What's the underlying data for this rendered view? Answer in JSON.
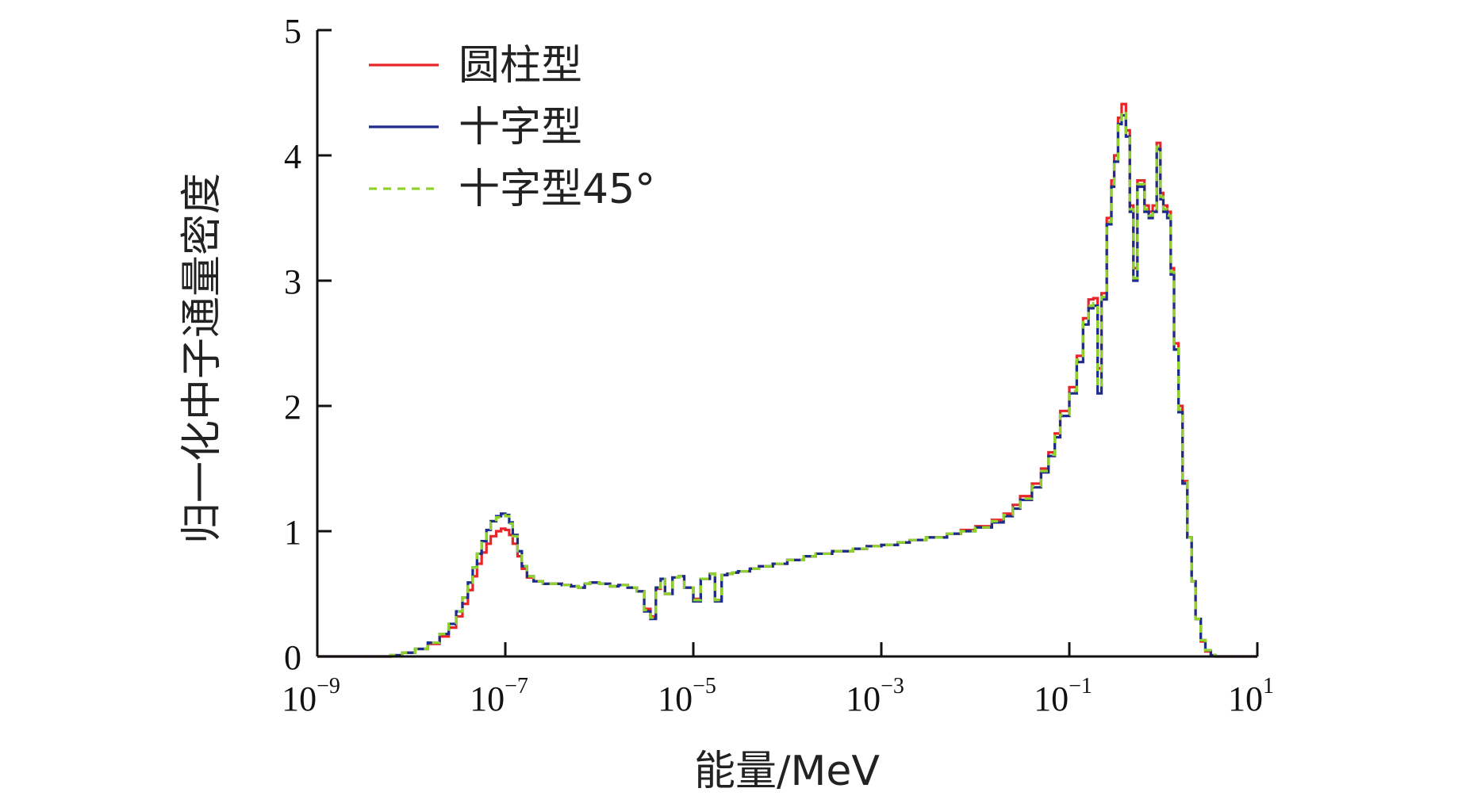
{
  "chart_data": {
    "type": "line",
    "title": "",
    "xlabel": "能量/MeV",
    "ylabel": "归一化中子通量密度",
    "x_scale": "log",
    "xlim": [
      1e-09,
      10
    ],
    "ylim": [
      0,
      5
    ],
    "x_ticks": [
      {
        "base": "10",
        "exp": "−9",
        "value": 1e-09
      },
      {
        "base": "10",
        "exp": "−7",
        "value": 1e-07
      },
      {
        "base": "10",
        "exp": "−5",
        "value": 1e-05
      },
      {
        "base": "10",
        "exp": "−3",
        "value": 0.001
      },
      {
        "base": "10",
        "exp": "−1",
        "value": 0.1
      },
      {
        "base": "10",
        "exp": "1",
        "value": 10
      }
    ],
    "y_ticks": [
      "0",
      "1",
      "2",
      "3",
      "4",
      "5"
    ],
    "grid": false,
    "legend_position": "top-left",
    "series": [
      {
        "name": "圆柱型",
        "color": "#e8262a",
        "dash": "solid",
        "x": [
          1e-09,
          2e-09,
          3e-09,
          4.5e-09,
          6e-09,
          8e-09,
          1.1e-08,
          1.5e-08,
          2e-08,
          2.5e-08,
          3e-08,
          3.5e-08,
          4e-08,
          4.5e-08,
          5e-08,
          5.6e-08,
          6.3e-08,
          7e-08,
          8e-08,
          9e-08,
          1e-07,
          1.1e-07,
          1.2e-07,
          1.35e-07,
          1.5e-07,
          1.7e-07,
          2e-07,
          2.5e-07,
          3e-07,
          4e-07,
          5e-07,
          6e-07,
          7e-07,
          8e-07,
          1e-06,
          1.3e-06,
          1.6e-06,
          2e-06,
          2.5e-06,
          3e-06,
          3.5e-06,
          4e-06,
          4.5e-06,
          5e-06,
          6e-06,
          7e-06,
          8e-06,
          1e-05,
          1.2e-05,
          1.5e-05,
          1.7e-05,
          2e-05,
          2.3e-05,
          2.6e-05,
          3e-05,
          4e-05,
          5e-05,
          7e-05,
          0.0001,
          0.00015,
          0.0002,
          0.0003,
          0.0005,
          0.0007,
          0.001,
          0.0015,
          0.002,
          0.003,
          0.005,
          0.007,
          0.01,
          0.015,
          0.02,
          0.025,
          0.03,
          0.04,
          0.05,
          0.06,
          0.07,
          0.08,
          0.1,
          0.12,
          0.14,
          0.16,
          0.18,
          0.2,
          0.22,
          0.25,
          0.28,
          0.3,
          0.33,
          0.36,
          0.4,
          0.44,
          0.48,
          0.53,
          0.58,
          0.63,
          0.7,
          0.77,
          0.85,
          0.93,
          1.0,
          1.1,
          1.2,
          1.3,
          1.45,
          1.6,
          1.8,
          2.0,
          2.2,
          2.5,
          2.8,
          3.2,
          3.6,
          4.0,
          4.5,
          5.0,
          5.6,
          6.3,
          7.1,
          8.0,
          10
        ],
        "y": [
          0.0,
          0.0,
          0.0,
          0.0,
          0.01,
          0.03,
          0.06,
          0.1,
          0.16,
          0.23,
          0.32,
          0.42,
          0.53,
          0.64,
          0.74,
          0.83,
          0.9,
          0.96,
          1.0,
          1.02,
          1.01,
          0.97,
          0.9,
          0.8,
          0.7,
          0.63,
          0.6,
          0.58,
          0.58,
          0.57,
          0.56,
          0.55,
          0.58,
          0.59,
          0.58,
          0.56,
          0.57,
          0.55,
          0.52,
          0.38,
          0.32,
          0.54,
          0.62,
          0.5,
          0.63,
          0.64,
          0.55,
          0.46,
          0.62,
          0.66,
          0.45,
          0.65,
          0.66,
          0.67,
          0.68,
          0.7,
          0.72,
          0.74,
          0.77,
          0.8,
          0.82,
          0.84,
          0.86,
          0.88,
          0.89,
          0.91,
          0.93,
          0.95,
          0.98,
          1.01,
          1.04,
          1.09,
          1.14,
          1.21,
          1.28,
          1.38,
          1.5,
          1.63,
          1.78,
          1.96,
          2.15,
          2.4,
          2.7,
          2.85,
          2.86,
          2.3,
          2.9,
          3.5,
          3.8,
          4.0,
          4.3,
          4.41,
          4.2,
          3.6,
          3.1,
          3.8,
          3.8,
          3.6,
          3.55,
          3.6,
          4.1,
          3.7,
          3.6,
          3.55,
          3.1,
          2.5,
          2.0,
          1.4,
          0.95,
          0.6,
          0.3,
          0.12,
          0.04,
          0.01,
          0.0,
          0.0,
          0.0,
          0.0,
          0.0,
          0.0,
          0.0,
          0.0,
          0.0
        ]
      },
      {
        "name": "十字型",
        "color": "#1c2b8c",
        "dash": "solid",
        "x": [
          1e-09,
          2e-09,
          3e-09,
          4.5e-09,
          6e-09,
          8e-09,
          1.1e-08,
          1.5e-08,
          2e-08,
          2.5e-08,
          3e-08,
          3.5e-08,
          4e-08,
          4.5e-08,
          5e-08,
          5.6e-08,
          6.3e-08,
          7e-08,
          8e-08,
          9e-08,
          1e-07,
          1.1e-07,
          1.2e-07,
          1.35e-07,
          1.5e-07,
          1.7e-07,
          2e-07,
          2.5e-07,
          3e-07,
          4e-07,
          5e-07,
          6e-07,
          7e-07,
          8e-07,
          1e-06,
          1.3e-06,
          1.6e-06,
          2e-06,
          2.5e-06,
          3e-06,
          3.5e-06,
          4e-06,
          4.5e-06,
          5e-06,
          6e-06,
          7e-06,
          8e-06,
          1e-05,
          1.2e-05,
          1.5e-05,
          1.7e-05,
          2e-05,
          2.3e-05,
          2.6e-05,
          3e-05,
          4e-05,
          5e-05,
          7e-05,
          0.0001,
          0.00015,
          0.0002,
          0.0003,
          0.0005,
          0.0007,
          0.001,
          0.0015,
          0.002,
          0.003,
          0.005,
          0.007,
          0.01,
          0.015,
          0.02,
          0.025,
          0.03,
          0.04,
          0.05,
          0.06,
          0.07,
          0.08,
          0.1,
          0.12,
          0.14,
          0.16,
          0.18,
          0.2,
          0.22,
          0.25,
          0.28,
          0.3,
          0.33,
          0.36,
          0.4,
          0.44,
          0.48,
          0.53,
          0.58,
          0.63,
          0.7,
          0.77,
          0.85,
          0.93,
          1.0,
          1.1,
          1.2,
          1.3,
          1.45,
          1.6,
          1.8,
          2.0,
          2.2,
          2.5,
          2.8,
          3.2,
          3.6,
          4.0,
          4.5,
          5.0,
          5.6,
          6.3,
          7.1,
          8.0,
          10
        ],
        "y": [
          0.0,
          0.0,
          0.0,
          0.0,
          0.01,
          0.03,
          0.06,
          0.11,
          0.18,
          0.26,
          0.36,
          0.47,
          0.59,
          0.71,
          0.82,
          0.92,
          1.01,
          1.08,
          1.12,
          1.14,
          1.13,
          1.07,
          0.97,
          0.84,
          0.72,
          0.64,
          0.6,
          0.58,
          0.58,
          0.57,
          0.56,
          0.55,
          0.58,
          0.59,
          0.58,
          0.56,
          0.57,
          0.55,
          0.52,
          0.36,
          0.3,
          0.55,
          0.62,
          0.5,
          0.63,
          0.64,
          0.55,
          0.44,
          0.62,
          0.66,
          0.44,
          0.65,
          0.66,
          0.67,
          0.68,
          0.7,
          0.72,
          0.74,
          0.77,
          0.8,
          0.82,
          0.84,
          0.86,
          0.88,
          0.89,
          0.91,
          0.93,
          0.95,
          0.98,
          1.0,
          1.03,
          1.07,
          1.12,
          1.18,
          1.25,
          1.35,
          1.47,
          1.6,
          1.75,
          1.92,
          2.1,
          2.35,
          2.65,
          2.78,
          2.8,
          2.1,
          2.85,
          3.45,
          3.75,
          3.95,
          4.25,
          4.32,
          4.15,
          3.55,
          3.0,
          3.75,
          3.75,
          3.55,
          3.5,
          3.55,
          4.05,
          3.65,
          3.55,
          3.5,
          3.05,
          2.45,
          1.95,
          1.38,
          0.95,
          0.6,
          0.3,
          0.13,
          0.05,
          0.01,
          0.0,
          0.0,
          0.0,
          0.0,
          0.0,
          0.0,
          0.0,
          0.0,
          0.0
        ]
      },
      {
        "name": "十字型45°",
        "color": "#8fd22c",
        "dash": "dashed",
        "x": [
          1e-09,
          2e-09,
          3e-09,
          4.5e-09,
          6e-09,
          8e-09,
          1.1e-08,
          1.5e-08,
          2e-08,
          2.5e-08,
          3e-08,
          3.5e-08,
          4e-08,
          4.5e-08,
          5e-08,
          5.6e-08,
          6.3e-08,
          7e-08,
          8e-08,
          9e-08,
          1e-07,
          1.1e-07,
          1.2e-07,
          1.35e-07,
          1.5e-07,
          1.7e-07,
          2e-07,
          2.5e-07,
          3e-07,
          4e-07,
          5e-07,
          6e-07,
          7e-07,
          8e-07,
          1e-06,
          1.3e-06,
          1.6e-06,
          2e-06,
          2.5e-06,
          3e-06,
          3.5e-06,
          4e-06,
          4.5e-06,
          5e-06,
          6e-06,
          7e-06,
          8e-06,
          1e-05,
          1.2e-05,
          1.5e-05,
          1.7e-05,
          2e-05,
          2.3e-05,
          2.6e-05,
          3e-05,
          4e-05,
          5e-05,
          7e-05,
          0.0001,
          0.00015,
          0.0002,
          0.0003,
          0.0005,
          0.0007,
          0.001,
          0.0015,
          0.002,
          0.003,
          0.005,
          0.007,
          0.01,
          0.015,
          0.02,
          0.025,
          0.03,
          0.04,
          0.05,
          0.06,
          0.07,
          0.08,
          0.1,
          0.12,
          0.14,
          0.16,
          0.18,
          0.2,
          0.22,
          0.25,
          0.28,
          0.3,
          0.33,
          0.36,
          0.4,
          0.44,
          0.48,
          0.53,
          0.58,
          0.63,
          0.7,
          0.77,
          0.85,
          0.93,
          1.0,
          1.1,
          1.2,
          1.3,
          1.45,
          1.6,
          1.8,
          2.0,
          2.2,
          2.5,
          2.8,
          3.2,
          3.6,
          4.0,
          4.5,
          5.0,
          5.6,
          6.3,
          7.1,
          8.0,
          10
        ],
        "y": [
          0.0,
          0.0,
          0.0,
          0.0,
          0.01,
          0.03,
          0.06,
          0.11,
          0.18,
          0.26,
          0.36,
          0.47,
          0.59,
          0.71,
          0.82,
          0.92,
          1.0,
          1.07,
          1.11,
          1.13,
          1.12,
          1.06,
          0.96,
          0.84,
          0.72,
          0.64,
          0.6,
          0.58,
          0.58,
          0.57,
          0.56,
          0.55,
          0.58,
          0.59,
          0.58,
          0.56,
          0.57,
          0.55,
          0.52,
          0.37,
          0.31,
          0.55,
          0.62,
          0.5,
          0.63,
          0.64,
          0.55,
          0.45,
          0.62,
          0.66,
          0.45,
          0.65,
          0.66,
          0.67,
          0.68,
          0.7,
          0.72,
          0.74,
          0.77,
          0.8,
          0.82,
          0.84,
          0.86,
          0.88,
          0.89,
          0.91,
          0.93,
          0.95,
          0.98,
          1.0,
          1.03,
          1.08,
          1.13,
          1.19,
          1.26,
          1.36,
          1.48,
          1.61,
          1.76,
          1.93,
          2.12,
          2.37,
          2.67,
          2.8,
          2.82,
          2.15,
          2.87,
          3.47,
          3.77,
          3.97,
          4.27,
          4.35,
          4.17,
          3.57,
          3.02,
          3.77,
          3.77,
          3.57,
          3.52,
          3.57,
          4.07,
          3.67,
          3.57,
          3.52,
          3.07,
          2.47,
          1.97,
          1.39,
          0.95,
          0.6,
          0.3,
          0.13,
          0.05,
          0.01,
          0.0,
          0.0,
          0.0,
          0.0,
          0.0,
          0.0,
          0.0,
          0.0,
          0.0
        ]
      }
    ]
  }
}
